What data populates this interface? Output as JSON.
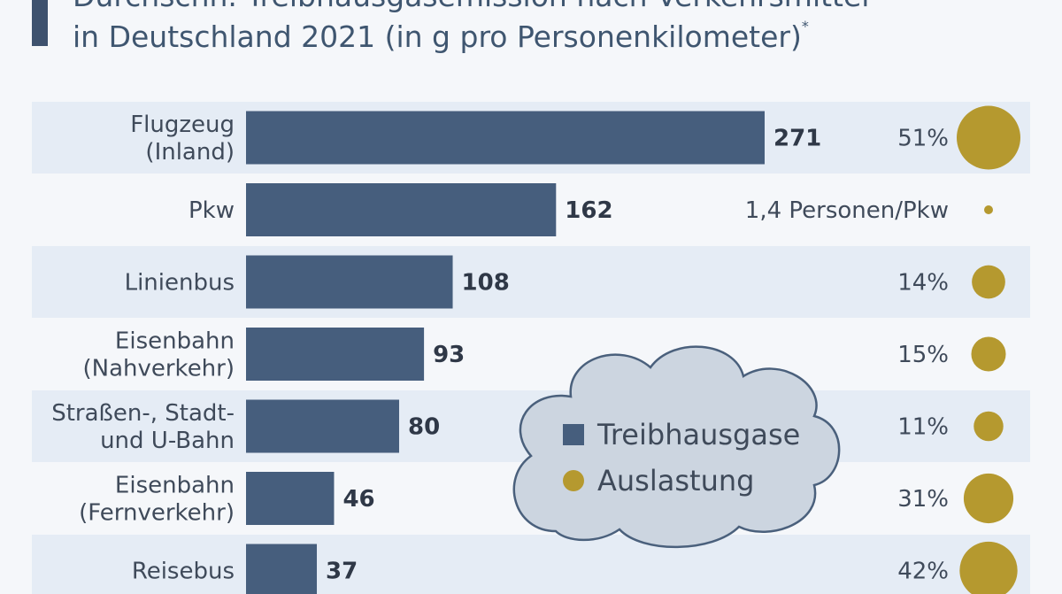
{
  "header": {
    "title_line1": "Durchschn. Treibhausgasemission nach Verkehrsmittel",
    "title_line2": "in Deutschland 2021 (in g pro Personenkilometer)",
    "footnote_marker": "*"
  },
  "colors": {
    "bar": "#465e7d",
    "circle": "#b5992f",
    "row_band": "#e5ecf5",
    "cloud_fill": "#ccd5e0",
    "cloud_stroke": "#4a607c",
    "accent": "#3e526e"
  },
  "legend": {
    "items": [
      {
        "label": "Treibhausgase",
        "shape": "square"
      },
      {
        "label": "Auslastung",
        "shape": "circle"
      }
    ]
  },
  "chart_data": {
    "type": "bar",
    "orientation": "horizontal",
    "title": "Durchschn. Treibhausgasemission nach Verkehrsmittel in Deutschland 2021 (in g pro Personenkilometer)",
    "categories": [
      [
        "Flugzeug",
        "(Inland)"
      ],
      [
        "Pkw"
      ],
      [
        "Linienbus"
      ],
      [
        "Eisenbahn",
        "(Nahverkehr)"
      ],
      [
        "Straßen-, Stadt-",
        "und U-Bahn"
      ],
      [
        "Eisenbahn",
        "(Fernverkehr)"
      ],
      [
        "Reisebus"
      ]
    ],
    "series": [
      {
        "name": "Treibhausgase",
        "values": [
          271,
          162,
          108,
          93,
          80,
          46,
          37
        ]
      },
      {
        "name": "Auslastung",
        "values": [
          51,
          null,
          14,
          15,
          11,
          31,
          42
        ],
        "labels": [
          "51%",
          "1,4 Personen/Pkw",
          "14%",
          "15%",
          "11%",
          "31%",
          "42%"
        ]
      }
    ],
    "xlim": [
      0,
      271
    ],
    "grid": false,
    "legend_position": "center-right"
  }
}
